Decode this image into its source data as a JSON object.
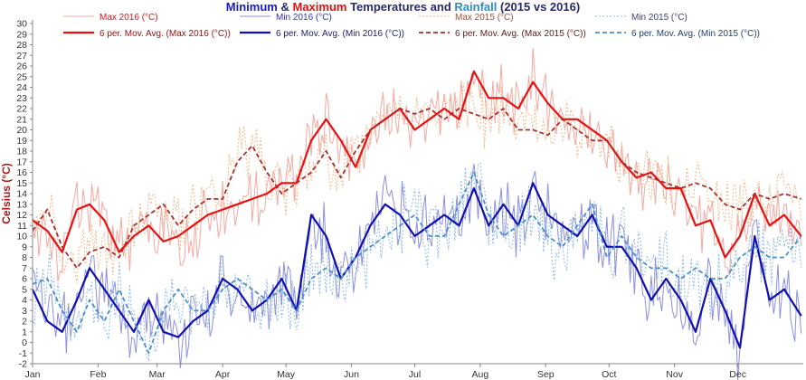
{
  "chart_data": {
    "type": "line",
    "title": {
      "part_min": "Minimum",
      "part_and": " & ",
      "part_max": "Maximum",
      "part_mid": " Temperatures and ",
      "part_rain": "Rainfall",
      "part_end": " (2015 vs 2016)"
    },
    "ylabel": "Celsius (°C)",
    "ylim": [
      -2,
      30
    ],
    "yticks": [
      "-2",
      "-1",
      "0",
      "1",
      "2",
      "3",
      "4",
      "5",
      "6",
      "7",
      "8",
      "9",
      "10",
      "11",
      "12",
      "13",
      "14",
      "15",
      "16",
      "17",
      "18",
      "19",
      "20",
      "21",
      "22",
      "23",
      "24",
      "25",
      "26",
      "27",
      "28",
      "29",
      "30"
    ],
    "months": [
      "Jan",
      "Feb",
      "Mar",
      "Apr",
      "May",
      "Jun",
      "Jul",
      "Aug",
      "Sep",
      "Oct",
      "Nov",
      "Dec"
    ],
    "grid": false,
    "legend_position": "top",
    "colors": {
      "max2016": "#e81010",
      "min2016": "#1010b0",
      "max2015": "#a83030",
      "min2015": "#4a90c8",
      "title_min": "#1a1ac8",
      "title_max": "#e81010",
      "title_rain": "#2e8fc0"
    },
    "legend": [
      {
        "key": "max2016_daily",
        "label": "Max 2016 (°C)",
        "style": "thin-solid-light-red"
      },
      {
        "key": "min2016_daily",
        "label": "Min 2016 (°C)",
        "style": "thin-solid-light-blue"
      },
      {
        "key": "max2015_daily",
        "label": "Max 2015 (°C)",
        "style": "thin-dotted-light-orange"
      },
      {
        "key": "min2015_daily",
        "label": "Min 2015 (°C)",
        "style": "thin-dotted-light-blue"
      },
      {
        "key": "max2016_avg",
        "label": "6 per. Mov. Avg. (Max 2016 (°C))",
        "style": "thick-solid-red"
      },
      {
        "key": "min2016_avg",
        "label": "6 per. Mov. Avg. (Min 2016 (°C))",
        "style": "thick-solid-blue"
      },
      {
        "key": "max2015_avg",
        "label": "6 per. Mov. Avg. (Max 2015 (°C))",
        "style": "thick-dashed-brown"
      },
      {
        "key": "min2015_avg",
        "label": "6 per. Mov. Avg. (Min 2015 (°C))",
        "style": "thick-dashed-light-blue"
      }
    ],
    "x_unit": "day of year",
    "moving_average_series": [
      {
        "name": "6 per. Mov. Avg. (Max 2016 (°C))",
        "key": "max2016_avg",
        "x": [
          1,
          8,
          15,
          22,
          28,
          35,
          42,
          49,
          56,
          63,
          70,
          77,
          84,
          91,
          98,
          105,
          112,
          119,
          126,
          133,
          140,
          147,
          154,
          161,
          168,
          175,
          182,
          189,
          196,
          203,
          210,
          217,
          224,
          231,
          238,
          245,
          252,
          259,
          266,
          273,
          280,
          287,
          294,
          301,
          308,
          315,
          322,
          329,
          336,
          343,
          350,
          357,
          365
        ],
        "y": [
          11.5,
          10.5,
          8.5,
          12.5,
          13,
          11.5,
          8.5,
          10,
          11,
          9.5,
          10,
          11,
          12,
          12.5,
          13,
          13.5,
          14,
          15,
          15,
          19,
          21,
          19,
          16.5,
          20,
          21,
          22,
          20,
          21,
          22,
          21,
          25.5,
          23,
          23,
          22,
          24.5,
          22.5,
          21,
          21,
          20,
          19,
          17,
          15.5,
          16,
          14.5,
          14.5,
          11,
          11.5,
          8,
          10,
          14,
          11,
          12,
          10
        ]
      },
      {
        "name": "6 per. Mov. Avg. (Min 2016 (°C))",
        "key": "min2016_avg",
        "x": [
          1,
          8,
          15,
          22,
          28,
          35,
          42,
          49,
          56,
          63,
          70,
          77,
          84,
          91,
          98,
          105,
          112,
          119,
          126,
          133,
          140,
          147,
          154,
          161,
          168,
          175,
          182,
          189,
          196,
          203,
          210,
          217,
          224,
          231,
          238,
          245,
          252,
          259,
          266,
          273,
          280,
          287,
          294,
          301,
          308,
          315,
          322,
          329,
          336,
          343,
          350,
          357,
          365
        ],
        "y": [
          5,
          2,
          1,
          4,
          7,
          5,
          3,
          1,
          4,
          1,
          0.5,
          2,
          3,
          6,
          5,
          3,
          4,
          6,
          3,
          12,
          10,
          6,
          8,
          11,
          13,
          12,
          10,
          11,
          12,
          11,
          14.5,
          11,
          13,
          11,
          15,
          12,
          11,
          10,
          12,
          9,
          9,
          7,
          4,
          6,
          4,
          1,
          6,
          3,
          -0.5,
          10,
          4,
          5,
          2.5
        ]
      },
      {
        "name": "6 per. Mov. Avg. (Max 2015 (°C))",
        "key": "max2015_avg",
        "x": [
          1,
          8,
          15,
          22,
          28,
          35,
          42,
          49,
          56,
          63,
          70,
          77,
          84,
          91,
          98,
          105,
          112,
          119,
          126,
          133,
          140,
          147,
          154,
          161,
          168,
          175,
          182,
          189,
          196,
          203,
          210,
          217,
          224,
          231,
          238,
          245,
          252,
          259,
          266,
          273,
          280,
          287,
          294,
          301,
          308,
          315,
          322,
          329,
          336,
          343,
          350,
          357,
          365
        ],
        "y": [
          10.5,
          12.5,
          9,
          7,
          8.5,
          9,
          8,
          11,
          12,
          13,
          11,
          12.5,
          13.5,
          13.5,
          17,
          18.5,
          16,
          14,
          15,
          16,
          18,
          15.5,
          18,
          20,
          21,
          22,
          21.5,
          22,
          21,
          22,
          21.5,
          21,
          22,
          20,
          20,
          19.5,
          21,
          20,
          19,
          19,
          17,
          16,
          15.5,
          15,
          14.5,
          15,
          14.5,
          13,
          12.5,
          14,
          13.5,
          14,
          13.5
        ]
      },
      {
        "name": "6 per. Mov. Avg. (Min 2015 (°C))",
        "key": "min2015_avg",
        "x": [
          1,
          8,
          15,
          22,
          28,
          35,
          42,
          49,
          56,
          63,
          70,
          77,
          84,
          91,
          98,
          105,
          112,
          119,
          126,
          133,
          140,
          147,
          154,
          161,
          168,
          175,
          182,
          189,
          196,
          203,
          210,
          217,
          224,
          231,
          238,
          245,
          252,
          259,
          266,
          273,
          280,
          287,
          294,
          301,
          308,
          315,
          322,
          329,
          336,
          343,
          350,
          357,
          365
        ],
        "y": [
          5.5,
          6,
          3,
          1,
          4,
          2,
          5,
          2,
          -1,
          3,
          5,
          3,
          3,
          5,
          6,
          5,
          4,
          5,
          3,
          6,
          7,
          6,
          8,
          9,
          10,
          11,
          12,
          10,
          10,
          13,
          16,
          12,
          10,
          11,
          12,
          10,
          9,
          11,
          13,
          8,
          10,
          8,
          7,
          7,
          6,
          7,
          6,
          6,
          8,
          9,
          8,
          8,
          10
        ]
      }
    ],
    "daily_series_note": "",
    "daily_series": [
      {
        "name": "Max 2016 (°C)",
        "key": "max2016_daily"
      },
      {
        "name": "Min 2016 (°C)",
        "key": "min2016_daily"
      },
      {
        "name": "Max 2015 (°C)",
        "key": "max2015_daily"
      },
      {
        "name": "Min 2015 (°C)",
        "key": "min2015_daily"
      }
    ]
  }
}
